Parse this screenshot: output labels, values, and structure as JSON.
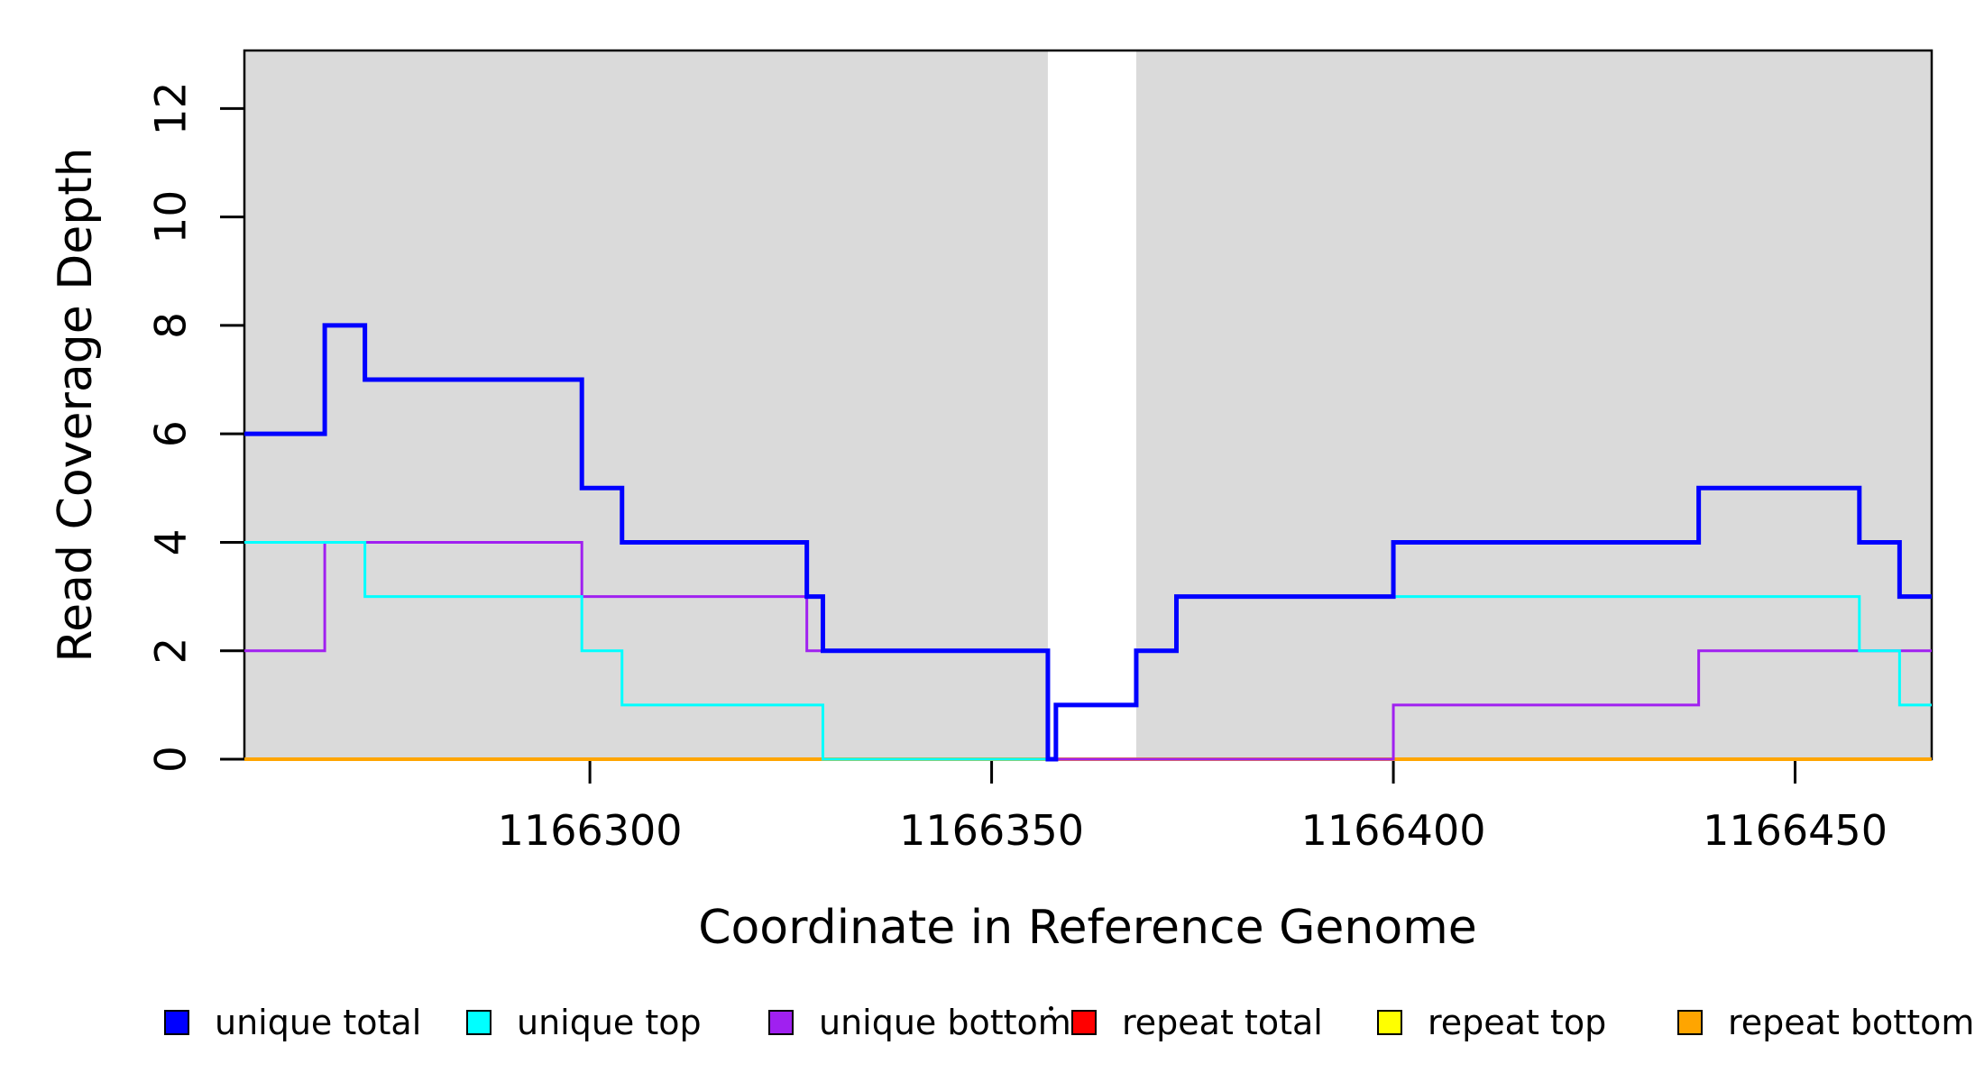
{
  "chart_data": {
    "type": "line",
    "step": true,
    "title": "",
    "xlabel": "Coordinate in Reference Genome",
    "ylabel": "Read Coverage Depth",
    "xlim": [
      1166257,
      1166467
    ],
    "ylim": [
      0,
      13.07
    ],
    "x_ticks": [
      1166300,
      1166350,
      1166400,
      1166450
    ],
    "y_ticks": [
      0,
      2,
      4,
      6,
      8,
      10,
      12
    ],
    "grid": false,
    "shade_color": "#DADADA",
    "shaded_regions": [
      {
        "x1": 1166257,
        "x2": 1166357
      },
      {
        "x1": 1166368,
        "x2": 1166467
      }
    ],
    "series": [
      {
        "name": "repeat top",
        "color": "#FFFF00",
        "width": 3,
        "y_start": 0,
        "steps": []
      },
      {
        "name": "repeat total",
        "color": "#FF0000",
        "width": 3,
        "y_start": 0,
        "steps": []
      },
      {
        "name": "repeat bottom",
        "color": "#FFA500",
        "width": 4,
        "y_start": 0,
        "steps": []
      },
      {
        "name": "unique bottom",
        "color": "#A020F0",
        "width": 3,
        "y_start": 2,
        "steps": [
          [
            1166267,
            4
          ],
          [
            1166299,
            3
          ],
          [
            1166327,
            2
          ],
          [
            1166357,
            0
          ],
          [
            1166400,
            1
          ],
          [
            1166438,
            2
          ]
        ]
      },
      {
        "name": "unique top",
        "color": "#00FFFF",
        "width": 3,
        "y_start": 4,
        "steps": [
          [
            1166272,
            3
          ],
          [
            1166299,
            2
          ],
          [
            1166304,
            1
          ],
          [
            1166329,
            0
          ],
          [
            1166358,
            1
          ],
          [
            1166368,
            2
          ],
          [
            1166373,
            3
          ],
          [
            1166458,
            2
          ],
          [
            1166463,
            1
          ]
        ]
      },
      {
        "name": "unique total",
        "color": "#0000FF",
        "width": 5,
        "y_start": 6,
        "steps": [
          [
            1166267,
            8
          ],
          [
            1166272,
            7
          ],
          [
            1166299,
            5
          ],
          [
            1166304,
            4
          ],
          [
            1166327,
            3
          ],
          [
            1166329,
            2
          ],
          [
            1166357,
            0
          ],
          [
            1166358,
            1
          ],
          [
            1166368,
            2
          ],
          [
            1166373,
            3
          ],
          [
            1166400,
            4
          ],
          [
            1166438,
            5
          ],
          [
            1166458,
            4
          ],
          [
            1166463,
            3
          ]
        ]
      }
    ],
    "legend": [
      {
        "label": "unique total",
        "color": "#0000FF"
      },
      {
        "label": "unique top",
        "color": "#00FFFF"
      },
      {
        "label": "unique bottom",
        "color": "#A020F0"
      },
      {
        "label": "repeat total",
        "color": "#FF0000"
      },
      {
        "label": "repeat top",
        "color": "#FFFF00"
      },
      {
        "label": "repeat bottom",
        "color": "#FFA500"
      }
    ],
    "legend_position": "bottom",
    "legend_stray_dot": true
  }
}
